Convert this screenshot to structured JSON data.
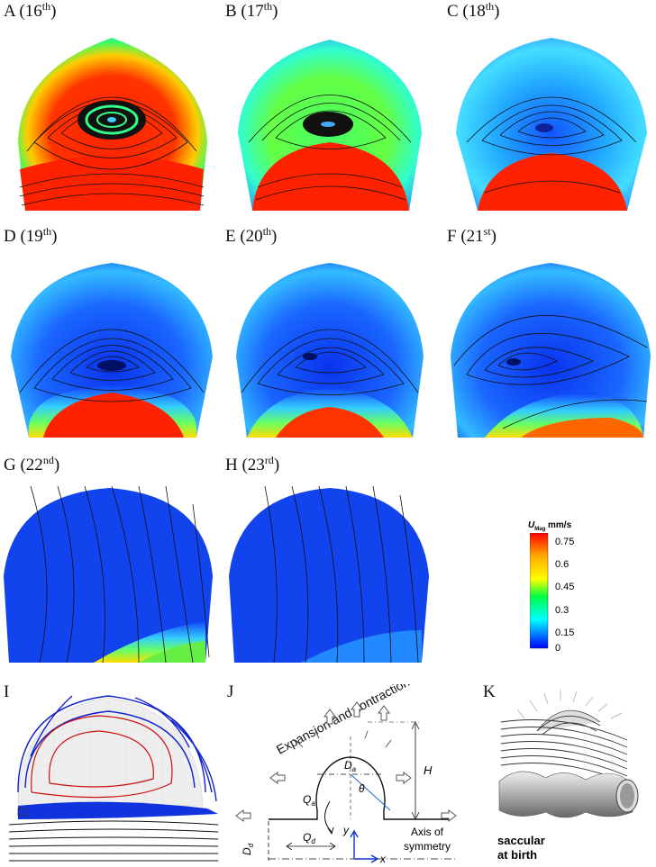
{
  "panels": [
    {
      "letter": "A (16",
      "sup": "th",
      "close": ")"
    },
    {
      "letter": "B (17",
      "sup": "th",
      "close": ")"
    },
    {
      "letter": "C (18",
      "sup": "th",
      "close": ")"
    },
    {
      "letter": "D (19",
      "sup": "th",
      "close": ")"
    },
    {
      "letter": "E (20",
      "sup": "th",
      "close": ")"
    },
    {
      "letter": "F (21",
      "sup": "st",
      "close": ")"
    },
    {
      "letter": "G (22",
      "sup": "nd",
      "close": ")"
    },
    {
      "letter": "H (23",
      "sup": "rd",
      "close": ")"
    }
  ],
  "colorbar": {
    "title_main": "U",
    "title_sub": "Mag",
    "title_unit": "mm/s",
    "ticks": [
      "0.75",
      "0.6",
      "0.45",
      "0.3",
      "0.15",
      "0"
    ],
    "colors": [
      "#ff0000",
      "#ffaa00",
      "#ffff00",
      "#00ff00",
      "#00ffff",
      "#0000ff"
    ]
  },
  "bottom": {
    "label_I": "I",
    "label_J": "J",
    "label_K": "K",
    "expansion_text": "Expansion and contraction",
    "Da": "D",
    "Da_sub": "a",
    "theta": "θ",
    "H": "H",
    "Qa": "Q",
    "Qa_sub": "a",
    "Qd": "Q",
    "Qd_sub": "d",
    "Dd": "D",
    "Dd_sub": "d",
    "y": "y",
    "x": "x",
    "axis_text_1": "Axis of",
    "axis_text_2": "symmetry",
    "saccular_1": "saccular",
    "saccular_2": "at birth"
  }
}
